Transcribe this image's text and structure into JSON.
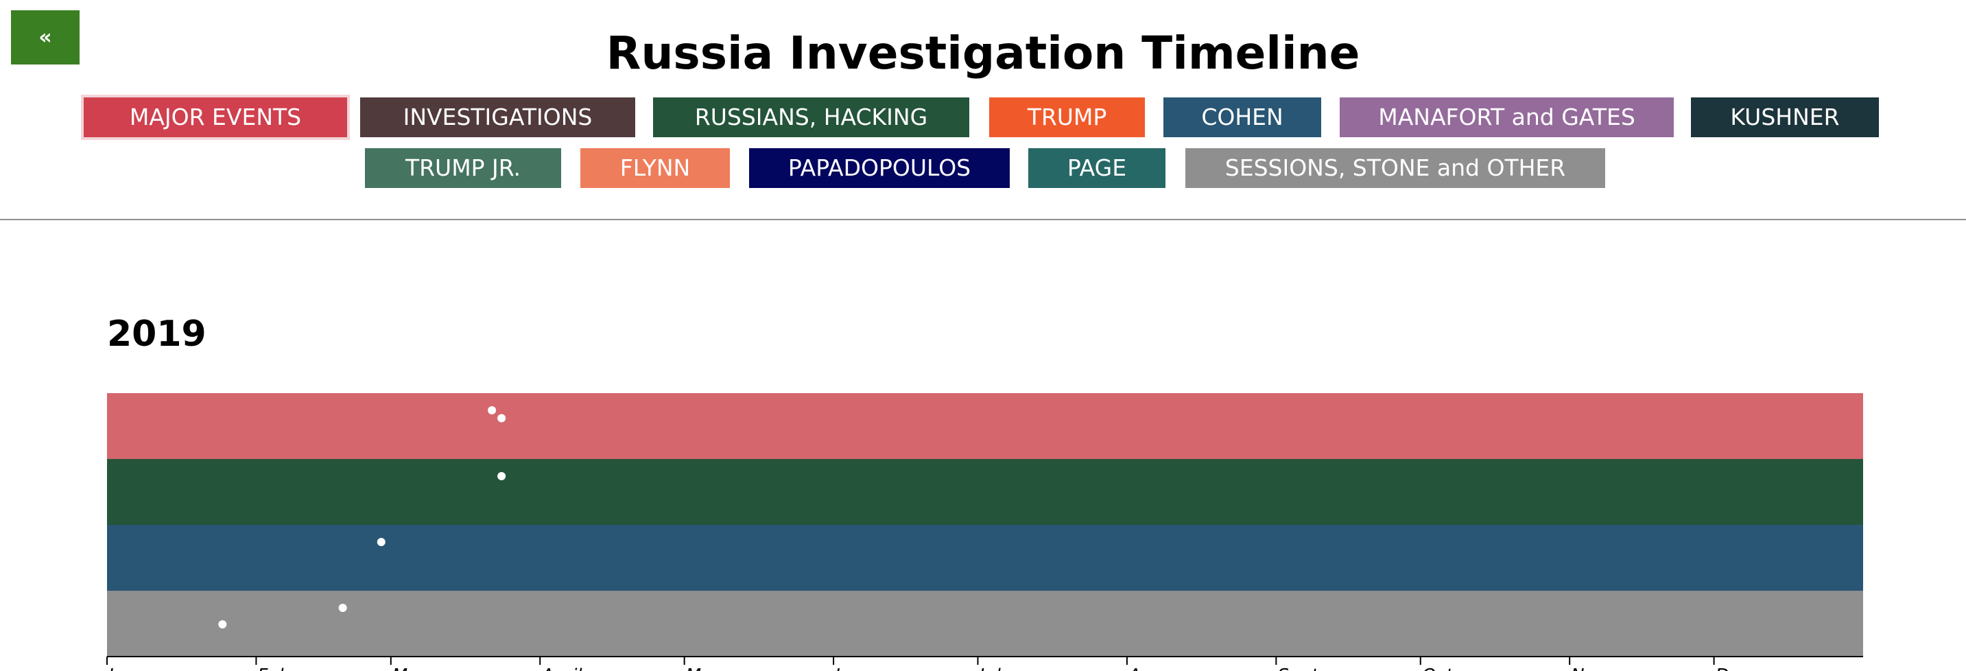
{
  "nav": {
    "back_label": "«"
  },
  "page": {
    "title": "Russia Investigation Timeline"
  },
  "categories": [
    {
      "label": "MAJOR EVENTS",
      "color": "#d0404e",
      "selected": true
    },
    {
      "label": "INVESTIGATIONS",
      "color": "#503a3c"
    },
    {
      "label": "RUSSIANS, HACKING",
      "color": "#24543a"
    },
    {
      "label": "TRUMP",
      "color": "#f05a2a"
    },
    {
      "label": "COHEN",
      "color": "#285674"
    },
    {
      "label": "MANAFORT and GATES",
      "color": "#946b9b"
    },
    {
      "label": "KUSHNER",
      "color": "#1c343b"
    },
    {
      "label": "TRUMP JR.",
      "color": "#457461"
    },
    {
      "label": "FLYNN",
      "color": "#ee7d5c"
    },
    {
      "label": "PAPADOPOULOS",
      "color": "#03065f"
    },
    {
      "label": "PAGE",
      "color": "#266866"
    },
    {
      "label": "SESSIONS, STONE and OTHER",
      "color": "#8f8f8f"
    }
  ],
  "timeline": {
    "year": "2019",
    "months": [
      "Jan",
      "Feb",
      "Mar",
      "April",
      "May",
      "June",
      "July",
      "Aug",
      "Sept",
      "Oct",
      "Nov",
      "Dec"
    ],
    "lanes": [
      {
        "category": "MAJOR EVENTS",
        "color": "#d5666e"
      },
      {
        "category": "RUSSIANS, HACKING",
        "color": "#24543a"
      },
      {
        "category": "COHEN",
        "color": "#285674"
      },
      {
        "category": "SESSIONS, STONE and OTHER",
        "color": "#8f8f8f"
      }
    ],
    "events": [
      {
        "lane": 0,
        "date": "2019-03-22",
        "level": 0.26
      },
      {
        "lane": 0,
        "date": "2019-03-24",
        "level": 0.38
      },
      {
        "lane": 1,
        "date": "2019-03-24",
        "level": 0.26
      },
      {
        "lane": 2,
        "date": "2019-02-27",
        "level": 0.26
      },
      {
        "lane": 3,
        "date": "2019-01-25",
        "level": 0.51
      },
      {
        "lane": 3,
        "date": "2019-02-19",
        "level": 0.26
      }
    ]
  }
}
